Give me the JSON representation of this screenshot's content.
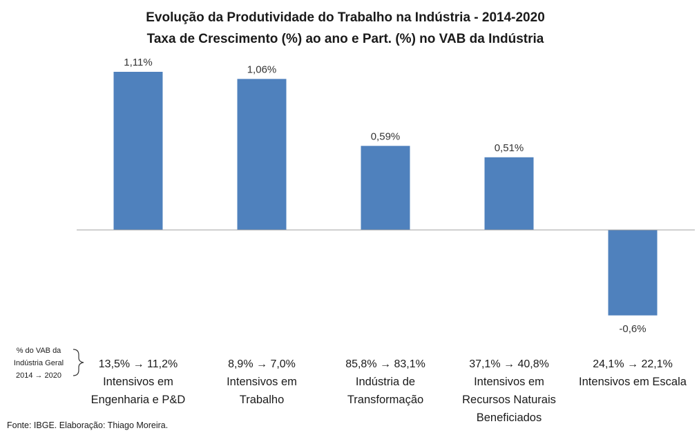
{
  "chart_data": {
    "type": "bar",
    "title": [
      "Evolução da Produtividade do Trabalho na Indústria - 2014-2020",
      "Taxa de Crescimento (%) ao ano e Part. (%) no VAB da Indústria"
    ],
    "categories": [
      [
        "Intensivos em",
        "Engenharia e P&D"
      ],
      [
        "Intensivos em",
        "Trabalho"
      ],
      [
        "Indústria de",
        "Transformação"
      ],
      [
        "Intensivos em",
        "Recursos Naturais",
        "Beneficiados"
      ],
      [
        "Intensivos em Escala"
      ]
    ],
    "values": [
      1.11,
      1.06,
      0.59,
      0.51,
      -0.6
    ],
    "data_labels": [
      "1,11%",
      "1,06%",
      "0,59%",
      "0,51%",
      "-0,6%"
    ],
    "vab_share_labels": [
      "13,5% → 11,2%",
      "8,9% → 7,0%",
      "85,8% → 83,1%",
      "37,1% → 40,8%",
      "24,1% → 22,1%"
    ],
    "vab_note": [
      "% do VAB da",
      "Indústria Geral",
      "2014 → 2020"
    ],
    "source": "Fonte: IBGE. Elaboração: Thiago Moreira.",
    "bar_color": "#4F81BD",
    "axis_color": "#A0A0A0",
    "grid": false,
    "legend": "none"
  }
}
